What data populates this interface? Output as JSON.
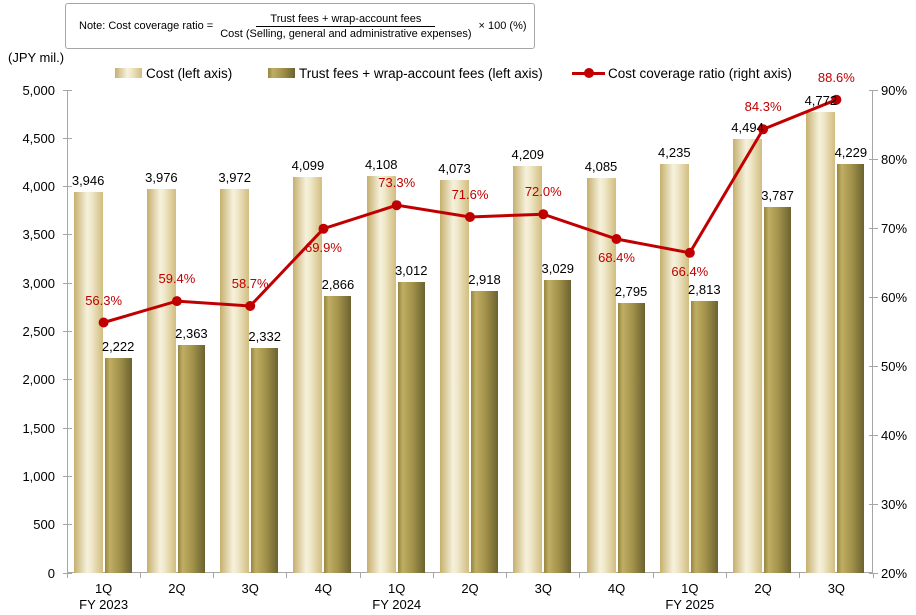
{
  "note": {
    "prefix": "Note:  Cost coverage ratio =",
    "numerator": "Trust fees +  wrap-account fees",
    "denominator": "Cost (Selling,  general and administrative expenses)",
    "suffix": "×  100  (%)"
  },
  "left_axis_unit": "(JPY mil.)",
  "legend": {
    "cost": "Cost (left axis)",
    "trust": "Trust fees + wrap-account fees (left axis)",
    "ratio": "Cost coverage ratio (right axis)"
  },
  "colors": {
    "line": "#c00000",
    "axis": "#a6a6a6",
    "bar_cost_edge": "#c6af6e",
    "bar_cost_light": "#f6f1dc",
    "bar_trust_light": "#bfae63",
    "bar_trust_dark": "#6b6231",
    "text": "#000000"
  },
  "chart_data": {
    "type": "combo-bar-line",
    "categories": [
      "1Q",
      "2Q",
      "3Q",
      "4Q",
      "1Q",
      "2Q",
      "3Q",
      "4Q",
      "1Q",
      "2Q",
      "3Q"
    ],
    "fiscal_years": [
      {
        "index": 0,
        "label": "FY 2023"
      },
      {
        "index": 4,
        "label": "FY 2024"
      },
      {
        "index": 8,
        "label": "FY 2025"
      }
    ],
    "series": [
      {
        "name": "Cost (left axis)",
        "type": "bar",
        "axis": "left",
        "values": [
          3946,
          3976,
          3972,
          4099,
          4108,
          4073,
          4209,
          4085,
          4235,
          4494,
          4772
        ],
        "labels": [
          "3,946",
          "3,976",
          "3,972",
          "4,099",
          "4,108",
          "4,073",
          "4,209",
          "4,085",
          "4,235",
          "4,494",
          "4,772"
        ]
      },
      {
        "name": "Trust fees + wrap-account fees (left axis)",
        "type": "bar",
        "axis": "left",
        "values": [
          2222,
          2363,
          2332,
          2866,
          3012,
          2918,
          3029,
          2795,
          2813,
          3787,
          4229
        ],
        "labels": [
          "2,222",
          "2,363",
          "2,332",
          "2,866",
          "3,012",
          "2,918",
          "3,029",
          "2,795",
          "2,813",
          "3,787",
          "4,229"
        ]
      },
      {
        "name": "Cost coverage ratio (right axis)",
        "type": "line",
        "axis": "right",
        "values": [
          56.3,
          59.4,
          58.7,
          69.9,
          73.3,
          71.6,
          72.0,
          68.4,
          66.4,
          84.3,
          88.6
        ],
        "labels": [
          "56.3%",
          "59.4%",
          "58.7%",
          "69.9%",
          "73.3%",
          "71.6%",
          "72.0%",
          "68.4%",
          "66.4%",
          "84.3%",
          "88.6%"
        ],
        "label_position": [
          "above",
          "above",
          "above",
          "below",
          "above",
          "above",
          "above",
          "below",
          "below",
          "above",
          "above"
        ]
      }
    ],
    "left_axis": {
      "min": 0,
      "max": 5000,
      "step": 500
    },
    "right_axis": {
      "min": 20,
      "max": 90,
      "step": 10,
      "suffix": "%"
    },
    "legend_position": "top",
    "grid": false
  }
}
